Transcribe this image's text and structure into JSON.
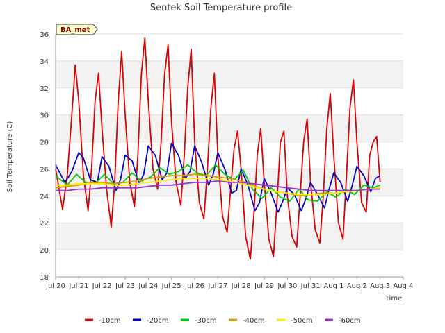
{
  "chart_data": {
    "type": "line",
    "title": "Sentek Soil Temperature profile",
    "xlabel": "Time",
    "ylabel": "Soil Temperature (C)",
    "station_label": "BA_met",
    "ylim": [
      18,
      36
    ],
    "yticks": [
      18,
      20,
      22,
      24,
      26,
      28,
      30,
      32,
      34,
      36
    ],
    "xlim": [
      0,
      15
    ],
    "xticks": [
      0,
      1,
      2,
      3,
      4,
      5,
      6,
      7,
      8,
      9,
      10,
      11,
      12,
      13,
      14,
      15
    ],
    "xtick_labels": [
      "Jul 20",
      "Jul 21",
      "Jul 22",
      "Jul 23",
      "Jul 24",
      "Jul 25",
      "Jul 26",
      "Jul 27",
      "Jul 28",
      "Jul 29",
      "Jul 30",
      "Jul 31",
      "Aug 1",
      "Aug 2",
      "Aug 3",
      "Aug 4"
    ],
    "grid": true,
    "legend_position": "bottom",
    "series": [
      {
        "name": "-10cm",
        "color": "#dd0000",
        "x": [
          0.0,
          0.15,
          0.3,
          0.5,
          0.7,
          0.85,
          1.0,
          1.2,
          1.4,
          1.55,
          1.7,
          1.85,
          2.0,
          2.2,
          2.4,
          2.55,
          2.7,
          2.85,
          3.0,
          3.2,
          3.4,
          3.55,
          3.7,
          3.85,
          4.0,
          4.2,
          4.4,
          4.55,
          4.7,
          4.85,
          5.0,
          5.2,
          5.4,
          5.55,
          5.7,
          5.85,
          6.0,
          6.2,
          6.4,
          6.55,
          6.7,
          6.85,
          7.0,
          7.2,
          7.4,
          7.55,
          7.7,
          7.85,
          8.0,
          8.2,
          8.4,
          8.55,
          8.7,
          8.85,
          9.0,
          9.2,
          9.4,
          9.55,
          9.7,
          9.85,
          10.0,
          10.2,
          10.4,
          10.55,
          10.7,
          10.85,
          11.0,
          11.2,
          11.4,
          11.55,
          11.7,
          11.85,
          12.0,
          12.2,
          12.4,
          12.55,
          12.7,
          12.85,
          13.0,
          13.2,
          13.4,
          13.55,
          13.7,
          13.85,
          14.0
        ],
        "values": [
          26.0,
          24.5,
          23.0,
          25.5,
          30.0,
          33.7,
          31.0,
          25.5,
          22.9,
          26.0,
          31.0,
          33.1,
          29.0,
          24.5,
          21.7,
          25.0,
          31.0,
          34.7,
          30.0,
          25.0,
          23.2,
          27.0,
          33.0,
          35.7,
          31.0,
          26.0,
          24.5,
          28.0,
          33.0,
          35.2,
          29.5,
          25.0,
          23.3,
          27.0,
          32.0,
          34.9,
          28.0,
          23.5,
          22.3,
          26.0,
          30.5,
          33.1,
          27.0,
          22.5,
          21.3,
          24.5,
          27.5,
          28.8,
          26.0,
          21.0,
          19.3,
          22.5,
          27.0,
          29.0,
          25.0,
          20.8,
          19.5,
          23.5,
          28.0,
          28.8,
          24.0,
          21.0,
          20.2,
          24.0,
          28.0,
          29.7,
          25.0,
          21.5,
          20.5,
          24.0,
          29.0,
          31.6,
          27.0,
          22.0,
          20.8,
          25.5,
          30.5,
          32.6,
          28.0,
          23.5,
          22.8,
          27.0,
          28.0,
          28.4,
          25.0
        ]
      },
      {
        "name": "-20cm",
        "color": "#0000cc",
        "x": [
          0.0,
          0.4,
          0.7,
          1.0,
          1.2,
          1.5,
          1.8,
          2.0,
          2.3,
          2.6,
          2.8,
          3.0,
          3.3,
          3.6,
          3.8,
          4.0,
          4.3,
          4.6,
          4.8,
          5.0,
          5.3,
          5.6,
          5.8,
          6.0,
          6.3,
          6.6,
          6.8,
          7.0,
          7.3,
          7.6,
          7.8,
          8.0,
          8.3,
          8.6,
          8.8,
          9.0,
          9.3,
          9.6,
          9.8,
          10.0,
          10.3,
          10.6,
          10.8,
          11.0,
          11.3,
          11.6,
          11.8,
          12.0,
          12.3,
          12.6,
          12.8,
          13.0,
          13.3,
          13.6,
          13.8,
          14.0
        ],
        "values": [
          26.3,
          25.0,
          25.8,
          27.2,
          26.8,
          25.2,
          25.0,
          26.9,
          26.2,
          24.4,
          25.2,
          27.0,
          26.6,
          24.9,
          25.6,
          27.7,
          27.0,
          25.2,
          25.7,
          27.9,
          27.0,
          25.3,
          25.8,
          27.7,
          26.5,
          24.8,
          25.6,
          27.2,
          26.0,
          24.2,
          24.4,
          26.0,
          24.8,
          22.9,
          23.5,
          25.3,
          24.2,
          22.8,
          23.6,
          24.6,
          24.1,
          22.9,
          23.8,
          25.0,
          24.1,
          23.1,
          24.5,
          25.7,
          25.0,
          23.6,
          24.8,
          26.2,
          25.5,
          24.3,
          25.3,
          25.5
        ]
      },
      {
        "name": "-30cm",
        "color": "#00cc00",
        "x": [
          0.0,
          0.5,
          0.9,
          1.3,
          1.7,
          2.1,
          2.5,
          2.9,
          3.3,
          3.7,
          4.1,
          4.5,
          4.9,
          5.3,
          5.7,
          6.1,
          6.5,
          6.9,
          7.3,
          7.7,
          8.1,
          8.5,
          8.9,
          9.3,
          9.7,
          10.1,
          10.5,
          10.9,
          11.3,
          11.7,
          12.1,
          12.5,
          12.9,
          13.3,
          13.7,
          14.0
        ],
        "values": [
          25.5,
          24.8,
          25.6,
          25.0,
          24.9,
          25.6,
          24.9,
          25.0,
          25.7,
          25.1,
          25.4,
          26.1,
          25.6,
          25.8,
          26.3,
          25.7,
          25.5,
          26.3,
          25.6,
          25.2,
          25.9,
          24.5,
          23.8,
          24.6,
          23.9,
          23.6,
          24.5,
          23.7,
          23.6,
          24.3,
          23.9,
          24.5,
          24.1,
          24.8,
          24.6,
          24.8
        ]
      },
      {
        "name": "-40cm",
        "color": "#dd9900",
        "x": [
          0.0,
          0.5,
          1.0,
          1.5,
          2.0,
          2.5,
          3.0,
          3.5,
          4.0,
          4.5,
          5.0,
          5.5,
          6.0,
          6.5,
          7.0,
          7.5,
          8.0,
          8.5,
          9.0,
          9.5,
          10.0,
          10.5,
          11.0,
          11.5,
          12.0,
          12.5,
          13.0,
          13.5,
          14.0
        ],
        "values": [
          24.6,
          24.7,
          24.8,
          25.0,
          25.0,
          24.9,
          25.0,
          25.1,
          25.3,
          25.4,
          25.5,
          25.5,
          25.6,
          25.5,
          25.4,
          25.3,
          25.1,
          24.8,
          24.5,
          24.3,
          24.2,
          24.0,
          24.1,
          24.2,
          24.2,
          24.3,
          24.4,
          24.5,
          24.6
        ]
      },
      {
        "name": "-50cm",
        "color": "#ffee00",
        "x": [
          0.0,
          0.5,
          1.0,
          1.5,
          2.0,
          2.5,
          3.0,
          3.5,
          4.0,
          4.5,
          5.0,
          5.5,
          6.0,
          6.5,
          7.0,
          7.5,
          8.0,
          8.5,
          9.0,
          9.5,
          10.0,
          10.5,
          11.0,
          11.5,
          12.0,
          12.5,
          13.0,
          13.5,
          14.0
        ],
        "values": [
          24.8,
          24.8,
          24.9,
          24.9,
          24.9,
          24.8,
          24.8,
          24.9,
          25.0,
          25.1,
          25.2,
          25.3,
          25.3,
          25.3,
          25.2,
          25.1,
          24.9,
          24.7,
          24.5,
          24.3,
          24.2,
          24.1,
          24.1,
          24.1,
          24.2,
          24.3,
          24.4,
          24.5,
          24.6
        ]
      },
      {
        "name": "-60cm",
        "color": "#9933cc",
        "x": [
          0.0,
          0.5,
          1.0,
          1.5,
          2.0,
          2.5,
          3.0,
          3.5,
          4.0,
          4.5,
          5.0,
          5.5,
          6.0,
          6.5,
          7.0,
          7.5,
          8.0,
          8.5,
          9.0,
          9.5,
          10.0,
          10.5,
          11.0,
          11.5,
          12.0,
          12.5,
          13.0,
          13.5,
          14.0
        ],
        "values": [
          24.4,
          24.4,
          24.5,
          24.5,
          24.6,
          24.6,
          24.6,
          24.6,
          24.7,
          24.8,
          24.8,
          24.9,
          25.0,
          25.0,
          25.1,
          25.0,
          25.0,
          24.9,
          24.8,
          24.7,
          24.6,
          24.5,
          24.4,
          24.4,
          24.4,
          24.4,
          24.4,
          24.5,
          24.5
        ]
      }
    ]
  }
}
